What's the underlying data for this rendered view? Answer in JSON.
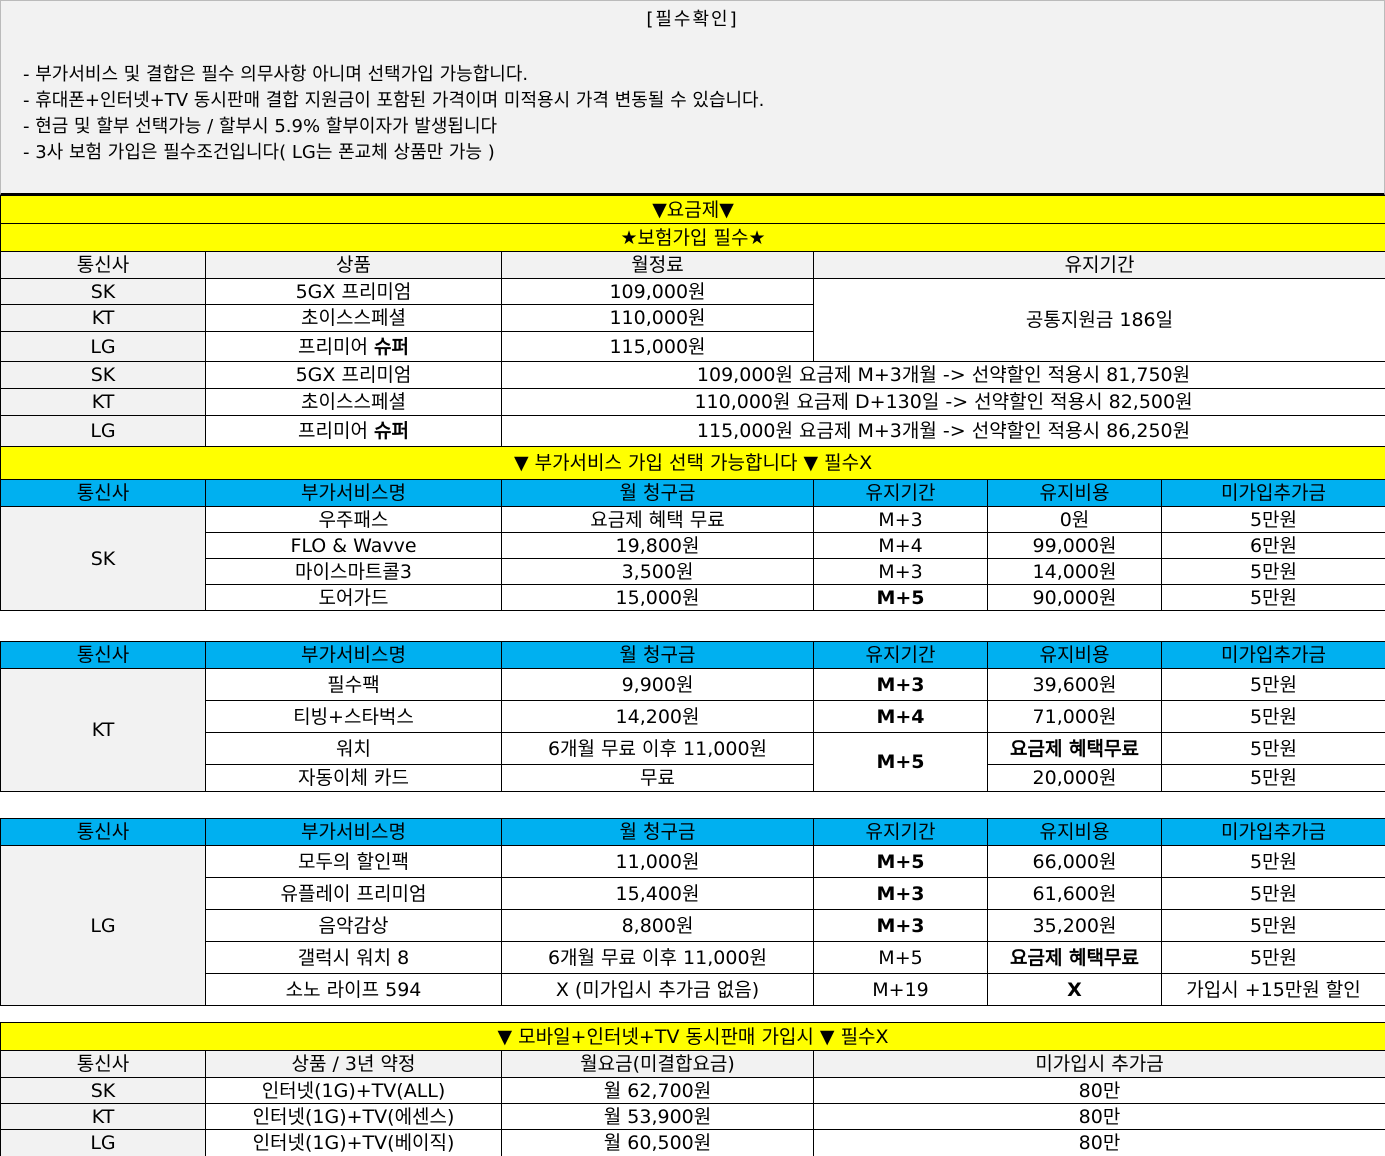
{
  "notice": {
    "title": "[필수확인]",
    "lines": [
      "- 부가서비스 및 결합은 필수 의무사항 아니며 선택가입 가능합니다.",
      "- 휴대폰+인터넷+TV 동시판매 결합 지원금이 포함된 가격이며 미적용시 가격 변동될 수 있습니다.",
      "- 현금 및 할부 선택가능 / 할부시 5.9% 할부이자가 발생됩니다",
      "- 3사 보험 가입은 필수조건입니다( LG는 폰교체 상품만 가능 )"
    ]
  },
  "plan": {
    "banner": "▼요금제▼",
    "sub_banner": "★보험가입 필수★",
    "headers": [
      "통신사",
      "상품",
      "월정료",
      "유지기간"
    ],
    "rows": [
      {
        "carrier": "SK",
        "product": "5GX 프리미엄",
        "bold": "",
        "fee": "109,000원"
      },
      {
        "carrier": "KT",
        "product": "초이스스페셜",
        "bold": "",
        "fee": "110,000원"
      },
      {
        "carrier": "LG",
        "product": "프리미어 ",
        "bold": "슈퍼",
        "fee": "115,000원"
      }
    ],
    "support_period": "공통지원금 186일",
    "discount_rows": [
      {
        "carrier": "SK",
        "product": "5GX 프리미엄",
        "bold": "",
        "text": "109,000원 요금제 M+3개월 -> 선약할인 적용시 81,750원"
      },
      {
        "carrier": "KT",
        "product": "초이스스페셜",
        "bold": "",
        "text": "110,000원 요금제 D+130일 -> 선약할인 적용시 82,500원"
      },
      {
        "carrier": "LG",
        "product": "프리미어 ",
        "bold": "슈퍼",
        "text": "115,000원 요금제 M+3개월 -> 선약할인 적용시 86,250원"
      }
    ]
  },
  "addon_banner": "▼ 부가서비스 가입 선택 가능합니다 ▼ 필수X",
  "addon_headers": [
    "통신사",
    "부가서비스명",
    "월 청구금",
    "유지기간",
    "유지비용",
    "미가입추가금"
  ],
  "sk_addons": {
    "carrier": "SK",
    "rows": [
      [
        "우주패스",
        "요금제 혜택 무료",
        "M+3",
        "0원",
        "5만원"
      ],
      [
        "FLO & Wavve",
        "19,800원",
        "M+4",
        "99,000원",
        "6만원"
      ],
      [
        "마이스마트콜3",
        "3,500원",
        "M+3",
        "14,000원",
        "5만원"
      ],
      [
        "도어가드",
        "15,000원",
        "M+5",
        "90,000원",
        "5만원"
      ]
    ]
  },
  "kt_addons": {
    "carrier": "KT",
    "rows": [
      [
        "필수팩",
        "9,900원",
        "M+3",
        "39,600원",
        "5만원"
      ],
      [
        "티빙+스타벅스",
        "14,200원",
        "M+4",
        "71,000원",
        "5만원"
      ],
      [
        "워치",
        "6개월 무료 이후 11,000원",
        "M+5",
        "요금제 혜택무료",
        "5만원"
      ],
      [
        "자동이체 카드",
        "무료",
        "",
        "20,000원",
        "5만원"
      ]
    ]
  },
  "lg_addons": {
    "carrier": "LG",
    "rows": [
      [
        "모두의 할인팩",
        "11,000원",
        "M+5",
        "66,000원",
        "5만원"
      ],
      [
        "유플레이 프리미엄",
        "15,400원",
        "M+3",
        "61,600원",
        "5만원"
      ],
      [
        "음악감상",
        "8,800원",
        "M+3",
        "35,200원",
        "5만원"
      ],
      [
        "갤럭시 워치 8",
        "6개월 무료 이후 11,000원",
        "M+5",
        "요금제 혜택무료",
        "5만원"
      ],
      [
        "소노 라이프 594",
        "X (미가입시 추가금 없음)",
        "M+19",
        "X",
        "가입시 +15만원 할인"
      ]
    ]
  },
  "bundle": {
    "banner": "▼ 모바일+인터넷+TV 동시판매 가입시 ▼ 필수X",
    "headers": [
      "통신사",
      "상품 / 3년 약정",
      "월요금(미결합요금)",
      "미가입시 추가금"
    ],
    "rows": [
      [
        "SK",
        "인터넷(1G)+TV(ALL)",
        "월 62,700원",
        "80만"
      ],
      [
        "KT",
        "인터넷(1G)+TV(에센스)",
        "월 53,900원",
        "80만"
      ],
      [
        "LG",
        "인터넷(1G)+TV(베이직)",
        "월 60,500원",
        "80만"
      ]
    ]
  },
  "colors": {
    "yellow": "#ffff00",
    "blue": "#00b0f0",
    "gray": "#f2f2f2"
  }
}
